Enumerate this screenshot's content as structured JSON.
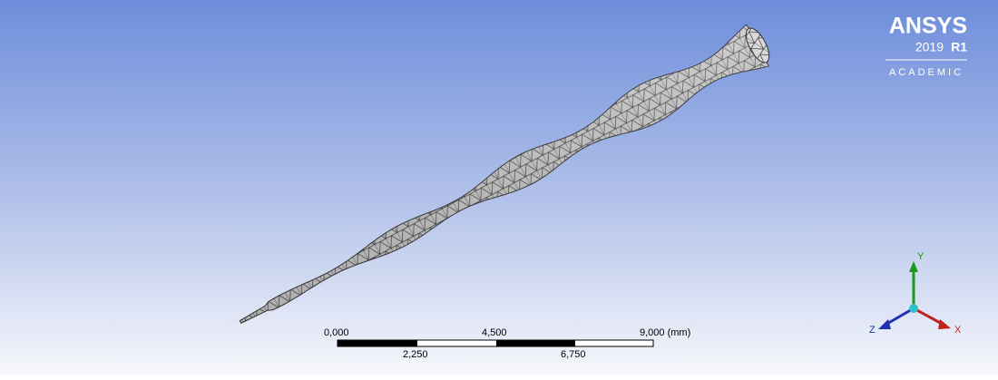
{
  "logo": {
    "brand": "ANSYS",
    "year": "2019",
    "release": "R1",
    "edition": "ACADEMIC"
  },
  "scale_bar": {
    "top_labels": [
      "0,000",
      "4,500",
      "9,000 (mm)"
    ],
    "bottom_labels": [
      "2,250",
      "6,750"
    ]
  },
  "triad": {
    "y": "Y",
    "x": "X",
    "z": "Z"
  }
}
